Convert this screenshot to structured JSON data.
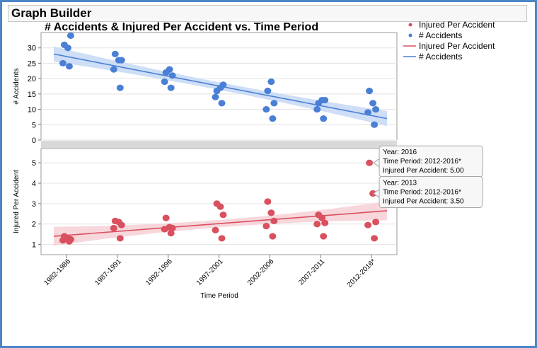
{
  "app": {
    "title": "Graph Builder"
  },
  "colors": {
    "accidents": "#4a7fd6",
    "accidents_band": "#c9daf5",
    "injured": "#d9505f",
    "injured_band": "#f6d3d8",
    "frame": "#4a86c8"
  },
  "chart_data": {
    "type": "scatter",
    "title": "# Accidents & Injured Per Accident vs. Time Period",
    "xlabel": "Time Period",
    "categories": [
      "1982-1986",
      "1987-1991",
      "1992-1996",
      "1997-2001",
      "2002-2006",
      "2007-2011",
      "2012-2016*"
    ],
    "panels": [
      {
        "id": "accidents",
        "ylabel": "# Accidents",
        "ylim": [
          0,
          35
        ],
        "yticks": [
          0,
          5,
          10,
          15,
          20,
          25,
          30
        ],
        "points": [
          {
            "x": 0,
            "y": 31
          },
          {
            "x": 0,
            "y": 30
          },
          {
            "x": 0,
            "y": 34
          },
          {
            "x": 0,
            "y": 25
          },
          {
            "x": 0,
            "y": 24
          },
          {
            "x": 1,
            "y": 28
          },
          {
            "x": 1,
            "y": 26
          },
          {
            "x": 1,
            "y": 26
          },
          {
            "x": 1,
            "y": 23
          },
          {
            "x": 1,
            "y": 17
          },
          {
            "x": 2,
            "y": 22
          },
          {
            "x": 2,
            "y": 23
          },
          {
            "x": 2,
            "y": 21
          },
          {
            "x": 2,
            "y": 19
          },
          {
            "x": 2,
            "y": 17
          },
          {
            "x": 3,
            "y": 16
          },
          {
            "x": 3,
            "y": 17
          },
          {
            "x": 3,
            "y": 18
          },
          {
            "x": 3,
            "y": 14
          },
          {
            "x": 3,
            "y": 12
          },
          {
            "x": 4,
            "y": 16
          },
          {
            "x": 4,
            "y": 19
          },
          {
            "x": 4,
            "y": 12
          },
          {
            "x": 4,
            "y": 10
          },
          {
            "x": 4,
            "y": 7
          },
          {
            "x": 5,
            "y": 12
          },
          {
            "x": 5,
            "y": 13
          },
          {
            "x": 5,
            "y": 13
          },
          {
            "x": 5,
            "y": 10
          },
          {
            "x": 5,
            "y": 7
          },
          {
            "x": 6,
            "y": 16
          },
          {
            "x": 6,
            "y": 12
          },
          {
            "x": 6,
            "y": 10
          },
          {
            "x": 6,
            "y": 9
          },
          {
            "x": 6,
            "y": 5
          }
        ],
        "fit_line": {
          "start": 28,
          "end": 7
        }
      },
      {
        "id": "injured",
        "ylabel": "Injured Per Accident",
        "ylim": [
          0.5,
          5.7
        ],
        "yticks": [
          1,
          2,
          3,
          4,
          5
        ],
        "points": [
          {
            "x": 0,
            "y": 1.4
          },
          {
            "x": 0,
            "y": 1.3
          },
          {
            "x": 0,
            "y": 1.25
          },
          {
            "x": 0,
            "y": 1.2
          },
          {
            "x": 0,
            "y": 1.15
          },
          {
            "x": 1,
            "y": 2.15
          },
          {
            "x": 1,
            "y": 2.1
          },
          {
            "x": 1,
            "y": 1.95
          },
          {
            "x": 1,
            "y": 1.8
          },
          {
            "x": 1,
            "y": 1.3
          },
          {
            "x": 2,
            "y": 2.3
          },
          {
            "x": 2,
            "y": 1.85
          },
          {
            "x": 2,
            "y": 1.8
          },
          {
            "x": 2,
            "y": 1.75
          },
          {
            "x": 2,
            "y": 1.55
          },
          {
            "x": 3,
            "y": 3.0
          },
          {
            "x": 3,
            "y": 2.85
          },
          {
            "x": 3,
            "y": 2.45
          },
          {
            "x": 3,
            "y": 1.7
          },
          {
            "x": 3,
            "y": 1.3
          },
          {
            "x": 4,
            "y": 3.1
          },
          {
            "x": 4,
            "y": 2.55
          },
          {
            "x": 4,
            "y": 2.15
          },
          {
            "x": 4,
            "y": 1.9
          },
          {
            "x": 4,
            "y": 1.4
          },
          {
            "x": 5,
            "y": 2.45
          },
          {
            "x": 5,
            "y": 2.3
          },
          {
            "x": 5,
            "y": 2.05
          },
          {
            "x": 5,
            "y": 2.0
          },
          {
            "x": 5,
            "y": 1.4
          },
          {
            "x": 6,
            "y": 5.0
          },
          {
            "x": 6,
            "y": 3.5
          },
          {
            "x": 6,
            "y": 2.1
          },
          {
            "x": 6,
            "y": 1.95
          },
          {
            "x": 6,
            "y": 1.3
          }
        ],
        "fit_line": {
          "start": 1.4,
          "end": 2.65
        }
      }
    ],
    "legend": {
      "position": "top-right",
      "items": [
        {
          "kind": "marker",
          "label": "Injured Per Accident",
          "series": "injured"
        },
        {
          "kind": "marker",
          "label": "# Accidents",
          "series": "accidents"
        },
        {
          "kind": "line",
          "label": "Injured Per Accident",
          "series": "injured"
        },
        {
          "kind": "line",
          "label": "# Accidents",
          "series": "accidents"
        }
      ]
    },
    "tooltips": [
      {
        "x": 6,
        "y": 5.0,
        "lines": [
          "Year: 2016",
          "Time Period: 2012-2016*",
          "Injured Per Accident: 5.00"
        ]
      },
      {
        "x": 6,
        "y": 3.5,
        "lines": [
          "Year: 2013",
          "Time Period: 2012-2016*",
          "Injured Per Accident: 3.50"
        ]
      }
    ]
  }
}
